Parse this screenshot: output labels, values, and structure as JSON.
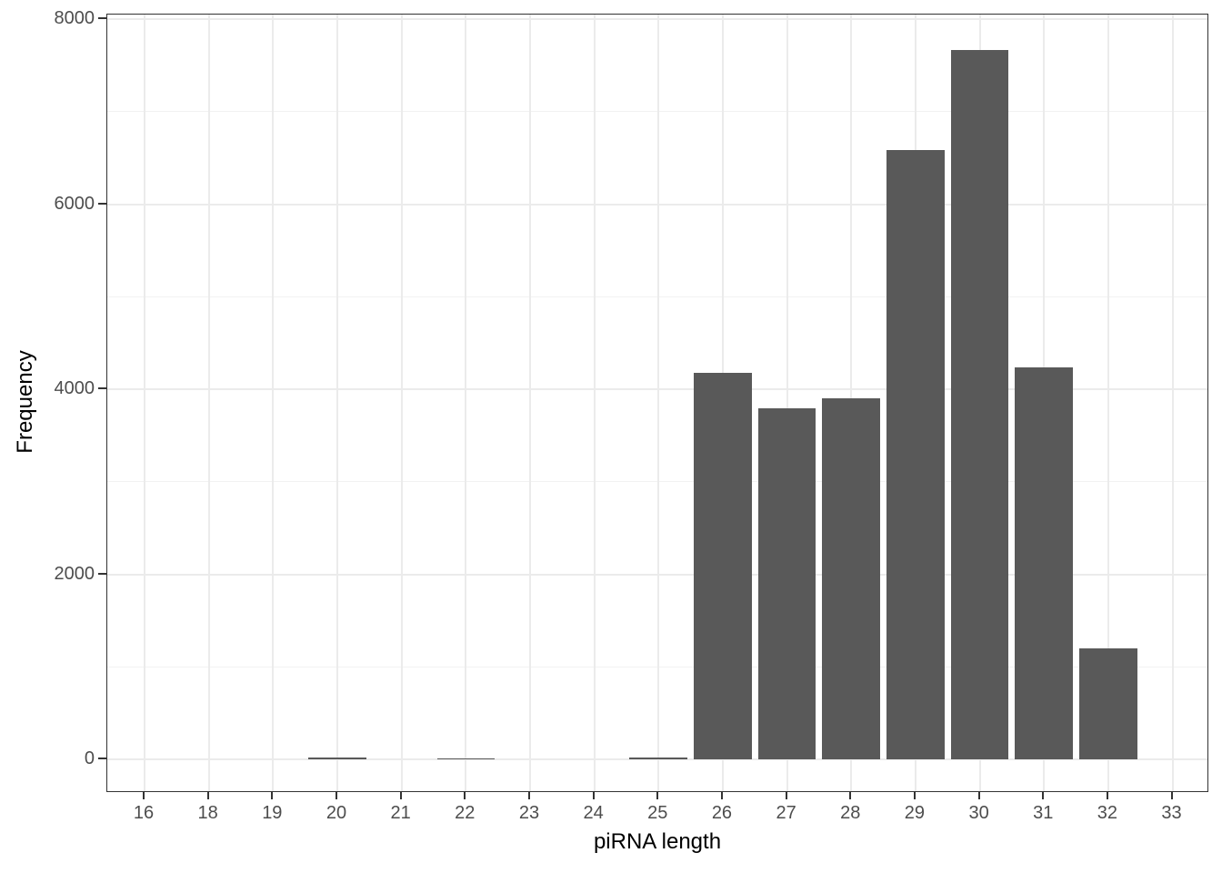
{
  "chart_data": {
    "type": "bar",
    "title": "",
    "xlabel": "piRNA length",
    "ylabel": "Frequency",
    "categories": [
      "16",
      "18",
      "19",
      "20",
      "21",
      "22",
      "23",
      "24",
      "25",
      "26",
      "27",
      "28",
      "29",
      "30",
      "31",
      "32",
      "33"
    ],
    "values": [
      0,
      0,
      0,
      15,
      0,
      12,
      0,
      0,
      18,
      4180,
      3790,
      3900,
      6580,
      7670,
      4240,
      1200,
      0
    ],
    "ylim": [
      0,
      8000
    ],
    "y_major_ticks": [
      0,
      2000,
      4000,
      6000,
      8000
    ],
    "y_tick_labels": [
      "0",
      "2000",
      "4000",
      "6000",
      "8000"
    ],
    "y_minor_gridlines": [
      1000,
      3000,
      5000,
      7000
    ],
    "grid": "on",
    "legend_position": "none",
    "style": "ggplot-theme-bw-discrete-x",
    "colors": {
      "bar_fill": "#595959",
      "grid_major": "#ebebeb",
      "grid_minor": "#f2f2f2",
      "panel_border": "#333333",
      "axis_tick": "#333333",
      "tick_label_text": "#4d4d4d",
      "axis_title_text": "#000000",
      "background": "#ffffff"
    }
  }
}
